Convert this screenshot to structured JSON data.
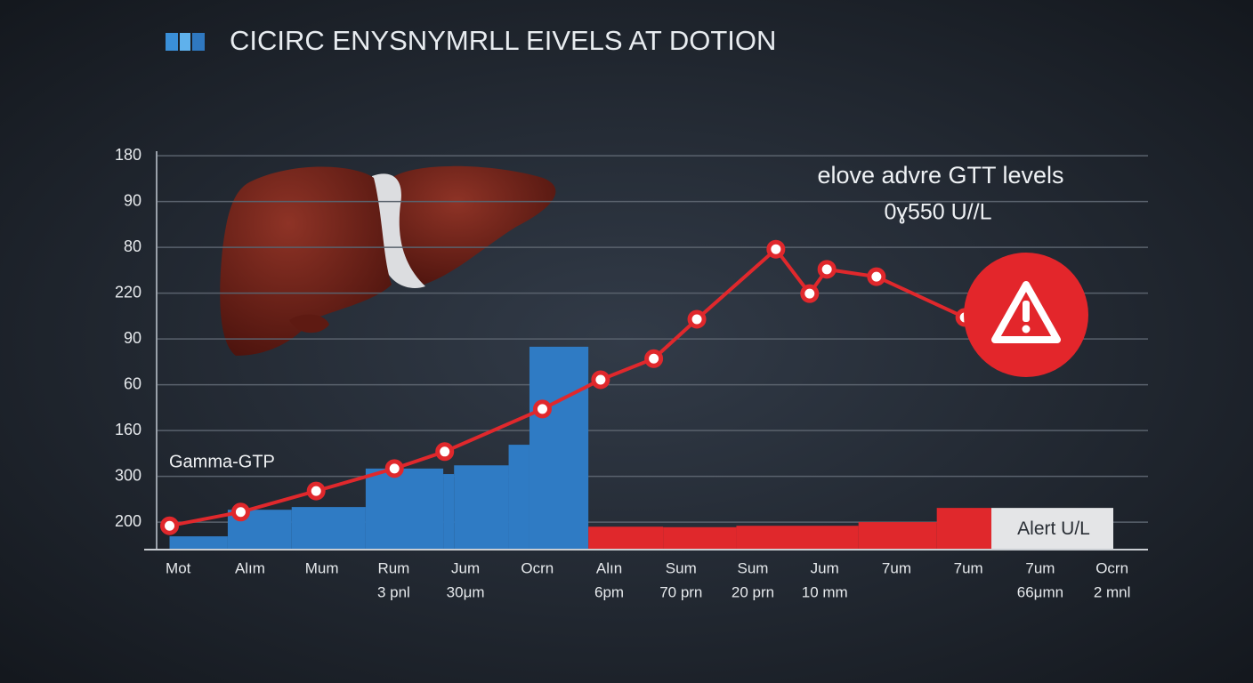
{
  "chart_data": {
    "type": "combo",
    "title": "CICIRC ENYSNYMRLL EIVELS AT DOTION",
    "annotation": [
      "elove advre GTT levels",
      "0ɣ550 U//L"
    ],
    "series_label": "Gamma-GTP",
    "alert_label": "Alert U/L",
    "categories": [
      "Mot",
      "Alım",
      "Mum",
      "Rum",
      "Jum",
      "Ocrn",
      "Alın",
      "Sum",
      "Sum",
      "Jum",
      "7um",
      "7um",
      "7um",
      "Ocrn"
    ],
    "sublabels": [
      null,
      null,
      null,
      "3 pnl",
      "30μm",
      null,
      "6pm",
      "70 prn",
      "20 prn",
      "10 mm",
      null,
      null,
      "66μmn",
      "2 mnl"
    ],
    "xlim": [
      -0.3,
      13.5
    ],
    "ylim": [
      0.4,
      9.1
    ],
    "yticks": [
      {
        "value": 1,
        "label": "200"
      },
      {
        "value": 2,
        "label": "300"
      },
      {
        "value": 3,
        "label": "160"
      },
      {
        "value": 4,
        "label": "60"
      },
      {
        "value": 5,
        "label": "90"
      },
      {
        "value": 6,
        "label": "220"
      },
      {
        "value": 7,
        "label": "80"
      },
      {
        "value": 8,
        "label": "90"
      },
      {
        "value": 9,
        "label": "180"
      }
    ],
    "grid": true,
    "bars": [
      {
        "color": "#2f7bc4",
        "bins": [
          -0.12,
          0.69,
          1.58,
          2.61,
          3.69,
          3.84,
          4.6,
          4.89,
          5.71
        ],
        "values": [
          0.69,
          1.27,
          1.33,
          2.17,
          2.05,
          2.24,
          2.69,
          4.83
        ]
      },
      {
        "color": "#e0282c",
        "bins": [
          5.71,
          6.75,
          7.77,
          9.47,
          10.56,
          11.32
        ],
        "values": [
          0.9,
          0.89,
          0.92,
          1.0,
          1.31
        ]
      }
    ],
    "line": {
      "color": "#e0282c",
      "x": [
        -0.12,
        0.87,
        1.92,
        3.01,
        3.71,
        5.07,
        5.88,
        6.62,
        7.22,
        8.32,
        8.79,
        9.03,
        9.72,
        10.95
      ],
      "values": [
        0.92,
        1.22,
        1.68,
        2.17,
        2.54,
        3.47,
        4.11,
        4.57,
        5.43,
        6.96,
        5.99,
        6.52,
        6.36,
        5.47
      ]
    }
  }
}
